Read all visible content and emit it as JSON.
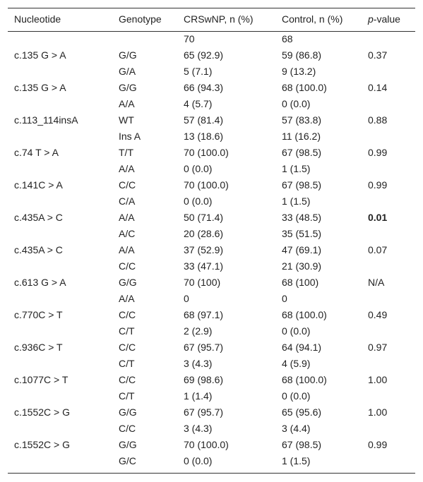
{
  "table": {
    "header": [
      "Nucleotide",
      "Genotype",
      "CRSwNP, n (%)",
      "Control, n (%)",
      [
        "p",
        "-value"
      ]
    ],
    "rows": [
      [
        null,
        null,
        "70",
        "68",
        null
      ],
      [
        "c.135 G > A",
        "G/G",
        "65 (92.9)",
        "59 (86.8)",
        "0.37"
      ],
      [
        null,
        "G/A",
        "5 (7.1)",
        "9 (13.2)",
        null
      ],
      [
        "c.135 G > A",
        "G/G",
        "66 (94.3)",
        "68 (100.0)",
        "0.14"
      ],
      [
        null,
        "A/A",
        "4 (5.7)",
        "0 (0.0)",
        null
      ],
      [
        "c.113_114insA",
        "WT",
        "57 (81.4)",
        "57 (83.8)",
        "0.88"
      ],
      [
        null,
        "Ins A",
        "13 (18.6)",
        "11 (16.2)",
        null
      ],
      [
        "c.74 T > A",
        "T/T",
        "70 (100.0)",
        "67 (98.5)",
        "0.99"
      ],
      [
        null,
        "A/A",
        "0 (0.0)",
        "1 (1.5)",
        null
      ],
      [
        "c.141C > A",
        "C/C",
        "70 (100.0)",
        "67 (98.5)",
        "0.99"
      ],
      [
        null,
        "C/A",
        "0 (0.0)",
        "1 (1.5)",
        null
      ],
      [
        "c.435A > C",
        "A/A",
        "50 (71.4)",
        "33 (48.5)",
        {
          "text": "0.01",
          "bold": true
        }
      ],
      [
        null,
        "A/C",
        "20 (28.6)",
        "35 (51.5)",
        null
      ],
      [
        "c.435A > C",
        "A/A",
        "37 (52.9)",
        "47 (69.1)",
        "0.07"
      ],
      [
        null,
        "C/C",
        "33 (47.1)",
        "21 (30.9)",
        null
      ],
      [
        "c.613 G > A",
        "G/G",
        "70 (100)",
        "68 (100)",
        "N/A"
      ],
      [
        null,
        "A/A",
        "0",
        "0",
        null
      ],
      [
        "c.770C > T",
        "C/C",
        "68 (97.1)",
        "68 (100.0)",
        "0.49"
      ],
      [
        null,
        "C/T",
        "2 (2.9)",
        "0 (0.0)",
        null
      ],
      [
        "c.936C > T",
        "C/C",
        "67 (95.7)",
        "64 (94.1)",
        "0.97"
      ],
      [
        null,
        "C/T",
        "3 (4.3)",
        "4 (5.9)",
        null
      ],
      [
        "c.1077C > T",
        "C/C",
        "69 (98.6)",
        "68 (100.0)",
        "1.00"
      ],
      [
        null,
        "C/T",
        "1 (1.4)",
        "0 (0.0)",
        null
      ],
      [
        "c.1552C > G",
        "G/G",
        "67 (95.7)",
        "65 (95.6)",
        "1.00"
      ],
      [
        null,
        "C/C",
        "3 (4.3)",
        "3 (4.4)",
        null
      ],
      [
        "c.1552C > G",
        "G/G",
        "70 (100.0)",
        "67 (98.5)",
        "0.99"
      ],
      [
        null,
        "G/C",
        "0 (0.0)",
        "1 (1.5)",
        null
      ]
    ]
  }
}
